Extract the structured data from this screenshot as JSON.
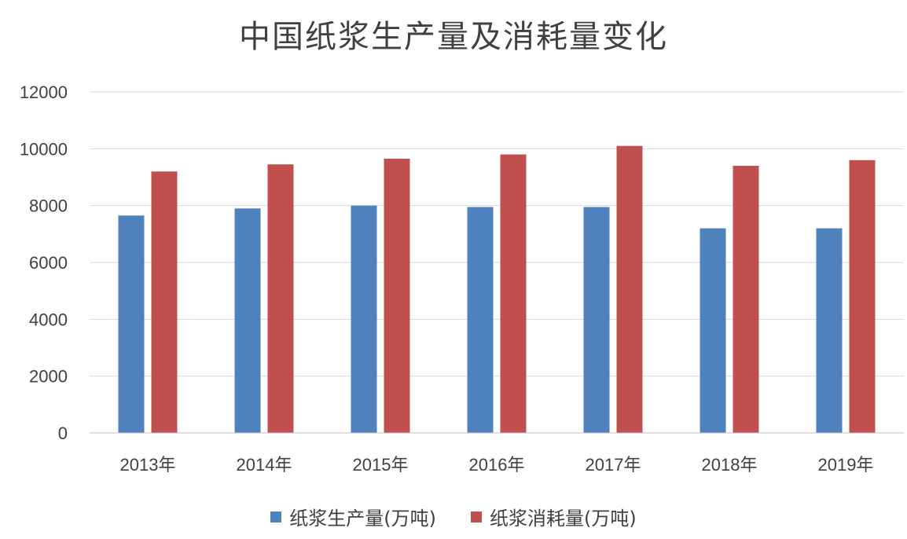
{
  "chart_data": {
    "type": "bar",
    "title": "中国纸浆生产量及消耗量变化",
    "categories": [
      "2013年",
      "2014年",
      "2015年",
      "2016年",
      "2017年",
      "2018年",
      "2019年"
    ],
    "series": [
      {
        "name": "纸浆生产量(万吨)",
        "color": "#4f81bd",
        "values": [
          7650,
          7900,
          8000,
          7950,
          7950,
          7200,
          7200
        ]
      },
      {
        "name": "纸浆消耗量(万吨)",
        "color": "#c0504d",
        "values": [
          9200,
          9450,
          9650,
          9800,
          10100,
          9400,
          9600
        ]
      }
    ],
    "yticks": [
      "0",
      "2000",
      "4000",
      "6000",
      "8000",
      "10000",
      "12000"
    ],
    "ylim": [
      0,
      12000
    ],
    "grid": true,
    "legend_position": "bottom"
  }
}
